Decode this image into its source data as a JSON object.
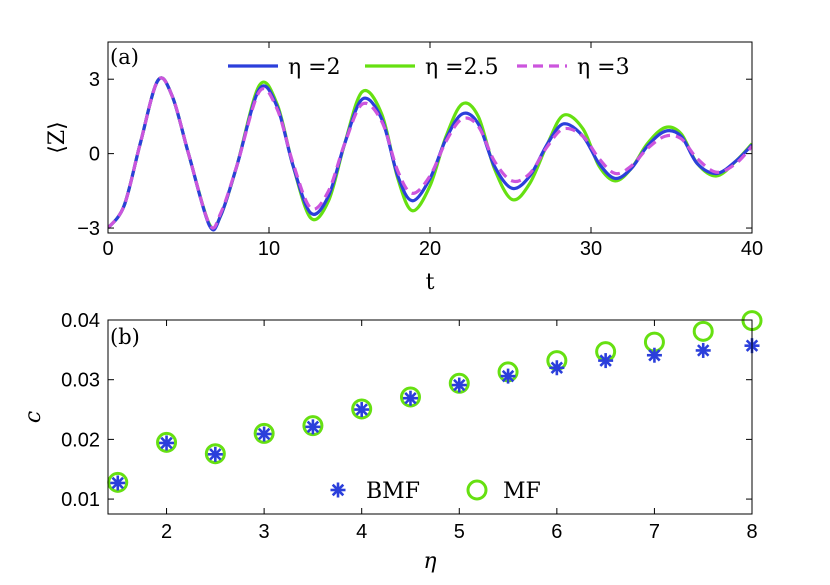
{
  "chart_data": [
    {
      "type": "line",
      "panel_label": "(a)",
      "xlabel": "t",
      "ylabel": "⟨Z⟩",
      "xlim": [
        0,
        40
      ],
      "ylim": [
        -3.2,
        4.5
      ],
      "xticks": [
        "0",
        "10",
        "20",
        "30",
        "40"
      ],
      "yticks": [
        "−3",
        "0",
        "3"
      ],
      "legend_position": "top",
      "series": [
        {
          "name": "η =2",
          "color": "#2b3fdb",
          "style": "solid",
          "x": [
            0,
            1,
            2,
            3.1,
            4,
            5,
            6.3,
            7,
            8,
            9.4,
            10.5,
            11.5,
            12.6,
            13.7,
            14.7,
            15.8,
            17,
            18,
            18.9,
            20,
            21,
            22,
            23,
            24,
            25.1,
            26.2,
            27.3,
            28.3,
            29.5,
            30.5,
            31.5,
            32.5,
            33.5,
            34.6,
            35.6,
            36.6,
            37.8,
            39,
            40
          ],
          "y": [
            -3,
            -2.1,
            0.4,
            2.95,
            2.3,
            0,
            -2.9,
            -2.5,
            -0.5,
            2.6,
            1.9,
            -0.5,
            -2.4,
            -1.7,
            0.4,
            2.2,
            1.4,
            -0.9,
            -1.9,
            -1,
            0.6,
            1.6,
            1.2,
            -0.5,
            -1.4,
            -0.9,
            0.4,
            1.2,
            0.7,
            -0.4,
            -1.0,
            -0.6,
            0.3,
            0.9,
            0.7,
            -0.4,
            -0.8,
            -0.3,
            0.35
          ]
        },
        {
          "name": "η =2.5",
          "color": "#66e011",
          "style": "solid",
          "x": [
            0,
            1,
            2,
            3.1,
            4,
            5,
            6.3,
            7,
            8,
            9.4,
            10.5,
            11.5,
            12.6,
            13.7,
            14.7,
            15.8,
            17,
            18,
            18.9,
            20,
            21,
            22,
            23,
            24,
            25.1,
            26.2,
            27.3,
            28.3,
            29.5,
            30.5,
            31.5,
            32.5,
            33.5,
            34.6,
            35.6,
            36.6,
            37.8,
            39,
            40
          ],
          "y": [
            -3,
            -2.1,
            0.4,
            2.95,
            2.3,
            0,
            -2.85,
            -2.5,
            -0.5,
            2.75,
            2.0,
            -0.5,
            -2.6,
            -1.9,
            0.4,
            2.5,
            1.6,
            -1.0,
            -2.3,
            -1.3,
            0.7,
            2.0,
            1.5,
            -0.6,
            -1.85,
            -1.2,
            0.4,
            1.55,
            1.0,
            -0.5,
            -1.1,
            -0.6,
            0.4,
            1.05,
            0.8,
            -0.4,
            -0.9,
            -0.3,
            0.4
          ]
        },
        {
          "name": "η =3",
          "color": "#cc55dd",
          "style": "dashed",
          "x": [
            0,
            1,
            2,
            3.1,
            4,
            5,
            6.3,
            7,
            8,
            9.4,
            10.5,
            11.5,
            12.6,
            13.7,
            14.7,
            15.8,
            17,
            18,
            18.9,
            20,
            21,
            22,
            23,
            24,
            25.1,
            26.2,
            27.3,
            28.3,
            29.5,
            30.5,
            31.5,
            32.5,
            33.5,
            34.6,
            35.6,
            36.6,
            37.8,
            39,
            40
          ],
          "y": [
            -3,
            -2.1,
            0.4,
            2.95,
            2.3,
            0,
            -2.85,
            -2.4,
            -0.5,
            2.5,
            1.8,
            -0.4,
            -2.2,
            -1.5,
            0.4,
            2.0,
            1.3,
            -0.7,
            -1.6,
            -0.9,
            0.5,
            1.4,
            1.1,
            -0.3,
            -1.1,
            -0.8,
            0.3,
            1.0,
            0.7,
            -0.2,
            -0.8,
            -0.5,
            0.2,
            0.7,
            0.6,
            -0.2,
            -0.75,
            -0.4,
            0.3
          ]
        }
      ]
    },
    {
      "type": "scatter",
      "panel_label": "(b)",
      "xlabel": "η",
      "ylabel": "c",
      "xlim": [
        1.4,
        8
      ],
      "ylim": [
        0.0075,
        0.04
      ],
      "xticks": [
        "2",
        "3",
        "4",
        "5",
        "6",
        "7",
        "8"
      ],
      "yticks": [
        "0.01",
        "0.02",
        "0.03",
        "0.04"
      ],
      "legend_position": "bottom-center",
      "x": [
        1.5,
        2,
        2.5,
        3,
        3.5,
        4,
        4.5,
        5,
        5.5,
        6,
        6.5,
        7,
        7.5,
        8
      ],
      "series": [
        {
          "name": "BMF",
          "marker": "asterisk",
          "color": "#2b3fdb",
          "values": [
            0.0127,
            0.0194,
            0.0175,
            0.0209,
            0.0221,
            0.025,
            0.0269,
            0.0291,
            0.0306,
            0.032,
            0.0332,
            0.0341,
            0.0349,
            0.0357
          ]
        },
        {
          "name": "MF",
          "marker": "circle",
          "color": "#66e011",
          "values": [
            0.0128,
            0.0195,
            0.0176,
            0.021,
            0.0223,
            0.0251,
            0.0271,
            0.0294,
            0.0313,
            0.0332,
            0.0347,
            0.0363,
            0.0381,
            0.0399
          ]
        }
      ]
    }
  ]
}
